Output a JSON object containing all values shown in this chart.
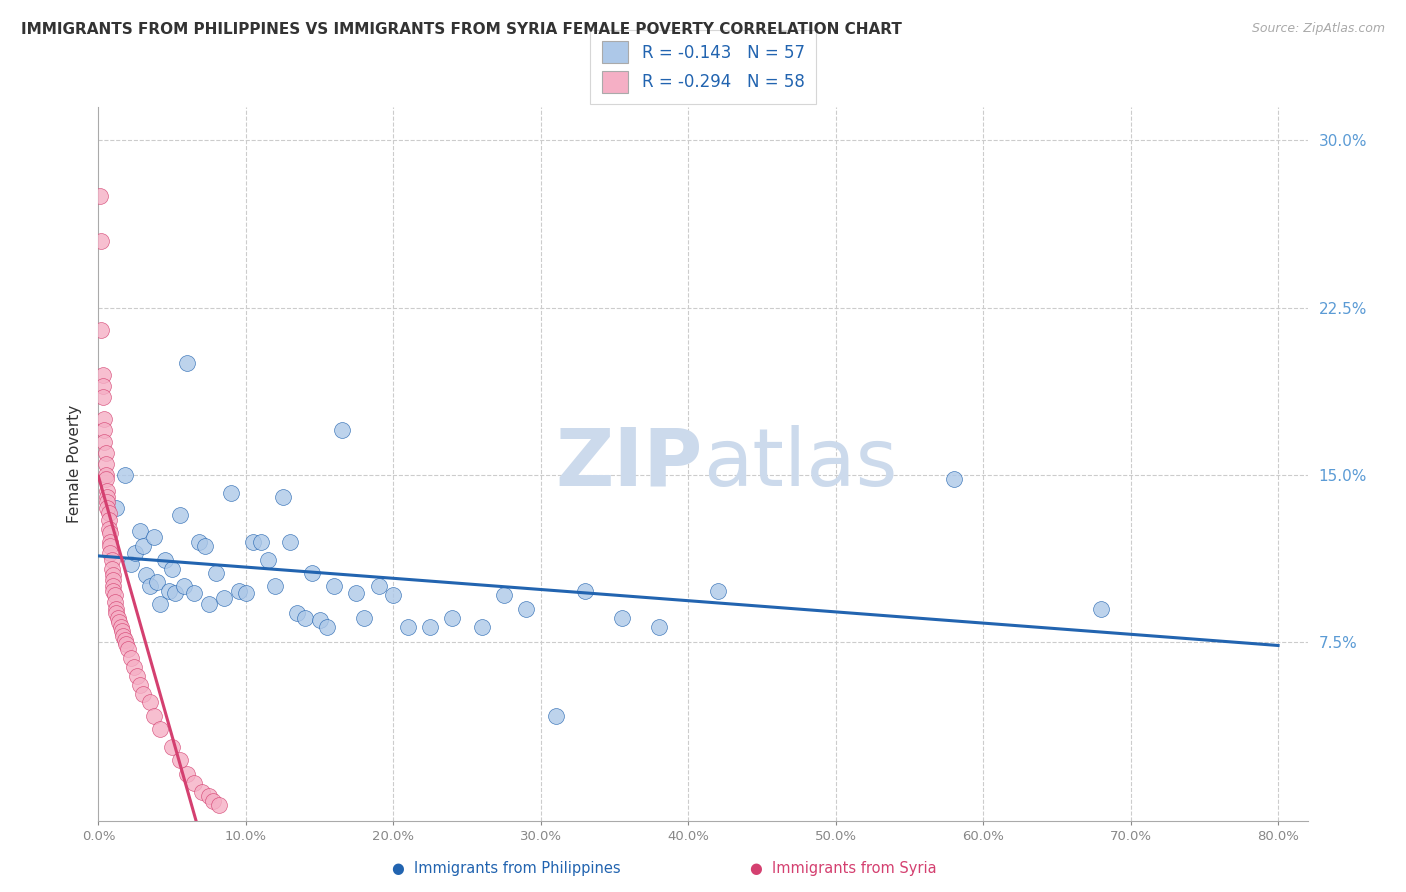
{
  "title": "IMMIGRANTS FROM PHILIPPINES VS IMMIGRANTS FROM SYRIA FEMALE POVERTY CORRELATION CHART",
  "source": "Source: ZipAtlas.com",
  "ylabel": "Female Poverty",
  "ylim": [
    -0.005,
    0.315
  ],
  "xlim": [
    0.0,
    0.82
  ],
  "r_philippines": -0.143,
  "n_philippines": 57,
  "r_syria": -0.294,
  "n_syria": 58,
  "philippines_color": "#adc8e8",
  "syria_color": "#f5afc5",
  "trendline_philippines_color": "#2264b0",
  "trendline_syria_color": "#d44070",
  "trendline_syria_dashed_color": "#e8a0b8",
  "watermark_color": "#ccdaec",
  "philippines_x": [
    0.012,
    0.018,
    0.022,
    0.025,
    0.028,
    0.03,
    0.032,
    0.035,
    0.038,
    0.04,
    0.042,
    0.045,
    0.048,
    0.05,
    0.052,
    0.055,
    0.058,
    0.06,
    0.065,
    0.068,
    0.072,
    0.075,
    0.08,
    0.085,
    0.09,
    0.095,
    0.1,
    0.105,
    0.11,
    0.115,
    0.12,
    0.125,
    0.13,
    0.135,
    0.14,
    0.145,
    0.15,
    0.155,
    0.16,
    0.165,
    0.175,
    0.18,
    0.19,
    0.2,
    0.21,
    0.225,
    0.24,
    0.26,
    0.275,
    0.29,
    0.31,
    0.33,
    0.355,
    0.38,
    0.42,
    0.58,
    0.68
  ],
  "philippines_y": [
    0.135,
    0.15,
    0.11,
    0.115,
    0.125,
    0.118,
    0.105,
    0.1,
    0.122,
    0.102,
    0.092,
    0.112,
    0.098,
    0.108,
    0.097,
    0.132,
    0.1,
    0.2,
    0.097,
    0.12,
    0.118,
    0.092,
    0.106,
    0.095,
    0.142,
    0.098,
    0.097,
    0.12,
    0.12,
    0.112,
    0.1,
    0.14,
    0.12,
    0.088,
    0.086,
    0.106,
    0.085,
    0.082,
    0.1,
    0.17,
    0.097,
    0.086,
    0.1,
    0.096,
    0.082,
    0.082,
    0.086,
    0.082,
    0.096,
    0.09,
    0.042,
    0.098,
    0.086,
    0.082,
    0.098,
    0.148,
    0.09
  ],
  "syria_x": [
    0.001,
    0.002,
    0.002,
    0.003,
    0.003,
    0.003,
    0.004,
    0.004,
    0.004,
    0.005,
    0.005,
    0.005,
    0.005,
    0.006,
    0.006,
    0.006,
    0.006,
    0.007,
    0.007,
    0.007,
    0.008,
    0.008,
    0.008,
    0.008,
    0.009,
    0.009,
    0.01,
    0.01,
    0.01,
    0.01,
    0.011,
    0.011,
    0.012,
    0.012,
    0.013,
    0.014,
    0.015,
    0.016,
    0.017,
    0.018,
    0.019,
    0.02,
    0.022,
    0.024,
    0.026,
    0.028,
    0.03,
    0.035,
    0.038,
    0.042,
    0.05,
    0.055,
    0.06,
    0.065,
    0.07,
    0.075,
    0.078,
    0.082
  ],
  "syria_y": [
    0.275,
    0.255,
    0.215,
    0.195,
    0.19,
    0.185,
    0.175,
    0.17,
    0.165,
    0.16,
    0.155,
    0.15,
    0.148,
    0.143,
    0.14,
    0.138,
    0.135,
    0.133,
    0.13,
    0.126,
    0.124,
    0.12,
    0.118,
    0.115,
    0.112,
    0.108,
    0.105,
    0.103,
    0.1,
    0.098,
    0.096,
    0.093,
    0.09,
    0.088,
    0.086,
    0.084,
    0.082,
    0.08,
    0.078,
    0.076,
    0.074,
    0.072,
    0.068,
    0.064,
    0.06,
    0.056,
    0.052,
    0.048,
    0.042,
    0.036,
    0.028,
    0.022,
    0.016,
    0.012,
    0.008,
    0.006,
    0.004,
    0.002
  ],
  "ytick_positions": [
    0.0,
    0.075,
    0.15,
    0.225,
    0.3
  ],
  "ytick_labels": [
    "",
    "7.5%",
    "15.0%",
    "22.5%",
    "30.0%"
  ],
  "xtick_positions": [
    0.0,
    0.1,
    0.2,
    0.3,
    0.4,
    0.5,
    0.6,
    0.7,
    0.8
  ],
  "xtick_labels": [
    "0.0%",
    "10.0%",
    "20.0%",
    "30.0%",
    "40.0%",
    "50.0%",
    "60.0%",
    "70.0%",
    "80.0%"
  ]
}
